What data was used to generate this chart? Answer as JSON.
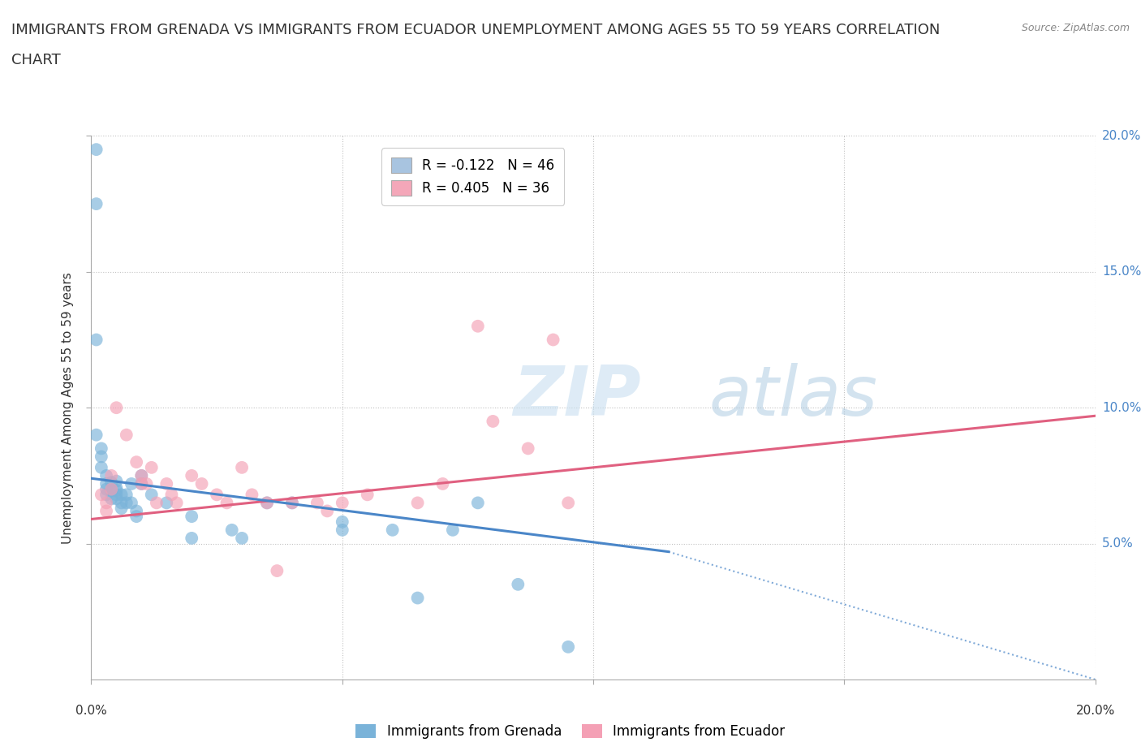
{
  "title_line1": "IMMIGRANTS FROM GRENADA VS IMMIGRANTS FROM ECUADOR UNEMPLOYMENT AMONG AGES 55 TO 59 YEARS CORRELATION",
  "title_line2": "CHART",
  "source_text": "Source: ZipAtlas.com",
  "ylabel": "Unemployment Among Ages 55 to 59 years",
  "xlim": [
    0.0,
    0.2
  ],
  "ylim": [
    0.0,
    0.2
  ],
  "xticks": [
    0.0,
    0.05,
    0.1,
    0.15,
    0.2
  ],
  "yticks": [
    0.05,
    0.1,
    0.15,
    0.2
  ],
  "xticklabels_below": [
    "0.0%",
    "20.0%"
  ],
  "xticklabels_below_pos": [
    0.0,
    0.2
  ],
  "right_yticklabels": [
    "5.0%",
    "10.0%",
    "15.0%",
    "20.0%"
  ],
  "legend_entries": [
    {
      "label": "R = -0.122   N = 46",
      "color": "#a8c4e0"
    },
    {
      "label": "R = 0.405   N = 36",
      "color": "#f4a7b9"
    }
  ],
  "legend_bottom_labels": [
    "Immigrants from Grenada",
    "Immigrants from Ecuador"
  ],
  "grenada_color": "#7ab3d9",
  "ecuador_color": "#f4a0b5",
  "grenada_line_color": "#4a86c8",
  "ecuador_line_color": "#e06080",
  "watermark_zip": "ZIP",
  "watermark_atlas": "atlas",
  "title_fontsize": 13,
  "axis_label_fontsize": 11,
  "tick_fontsize": 11,
  "grenada_points": [
    [
      0.001,
      0.175
    ],
    [
      0.001,
      0.195
    ],
    [
      0.001,
      0.125
    ],
    [
      0.001,
      0.09
    ],
    [
      0.002,
      0.085
    ],
    [
      0.002,
      0.082
    ],
    [
      0.002,
      0.078
    ],
    [
      0.003,
      0.075
    ],
    [
      0.003,
      0.072
    ],
    [
      0.003,
      0.07
    ],
    [
      0.003,
      0.068
    ],
    [
      0.004,
      0.0725
    ],
    [
      0.004,
      0.0695
    ],
    [
      0.004,
      0.0665
    ],
    [
      0.005,
      0.0705
    ],
    [
      0.005,
      0.068
    ],
    [
      0.005,
      0.073
    ],
    [
      0.005,
      0.0695
    ],
    [
      0.005,
      0.0665
    ],
    [
      0.006,
      0.068
    ],
    [
      0.006,
      0.065
    ],
    [
      0.006,
      0.063
    ],
    [
      0.007,
      0.065
    ],
    [
      0.007,
      0.068
    ],
    [
      0.008,
      0.072
    ],
    [
      0.008,
      0.065
    ],
    [
      0.009,
      0.062
    ],
    [
      0.009,
      0.06
    ],
    [
      0.01,
      0.075
    ],
    [
      0.01,
      0.072
    ],
    [
      0.012,
      0.068
    ],
    [
      0.015,
      0.065
    ],
    [
      0.02,
      0.06
    ],
    [
      0.02,
      0.052
    ],
    [
      0.028,
      0.055
    ],
    [
      0.03,
      0.052
    ],
    [
      0.035,
      0.065
    ],
    [
      0.04,
      0.065
    ],
    [
      0.05,
      0.058
    ],
    [
      0.05,
      0.055
    ],
    [
      0.06,
      0.055
    ],
    [
      0.065,
      0.03
    ],
    [
      0.072,
      0.055
    ],
    [
      0.077,
      0.065
    ],
    [
      0.085,
      0.035
    ],
    [
      0.095,
      0.012
    ]
  ],
  "ecuador_points": [
    [
      0.002,
      0.068
    ],
    [
      0.003,
      0.065
    ],
    [
      0.003,
      0.062
    ],
    [
      0.004,
      0.075
    ],
    [
      0.004,
      0.07
    ],
    [
      0.005,
      0.1
    ],
    [
      0.007,
      0.09
    ],
    [
      0.009,
      0.08
    ],
    [
      0.01,
      0.075
    ],
    [
      0.01,
      0.072
    ],
    [
      0.011,
      0.072
    ],
    [
      0.012,
      0.078
    ],
    [
      0.013,
      0.065
    ],
    [
      0.015,
      0.072
    ],
    [
      0.016,
      0.068
    ],
    [
      0.017,
      0.065
    ],
    [
      0.02,
      0.075
    ],
    [
      0.022,
      0.072
    ],
    [
      0.025,
      0.068
    ],
    [
      0.027,
      0.065
    ],
    [
      0.03,
      0.078
    ],
    [
      0.032,
      0.068
    ],
    [
      0.035,
      0.065
    ],
    [
      0.037,
      0.04
    ],
    [
      0.04,
      0.065
    ],
    [
      0.045,
      0.065
    ],
    [
      0.047,
      0.062
    ],
    [
      0.05,
      0.065
    ],
    [
      0.055,
      0.068
    ],
    [
      0.065,
      0.065
    ],
    [
      0.07,
      0.072
    ],
    [
      0.077,
      0.13
    ],
    [
      0.08,
      0.095
    ],
    [
      0.087,
      0.085
    ],
    [
      0.092,
      0.125
    ],
    [
      0.095,
      0.065
    ]
  ],
  "grenada_regression": {
    "x_start": 0.0,
    "x_end": 0.115,
    "y_start": 0.074,
    "y_end": 0.047,
    "x_dash_start": 0.115,
    "x_dash_end": 0.2,
    "y_dash_start": 0.047,
    "y_dash_end": 0.0
  },
  "ecuador_regression": {
    "x_start": 0.0,
    "x_end": 0.2,
    "y_start": 0.059,
    "y_end": 0.097
  }
}
